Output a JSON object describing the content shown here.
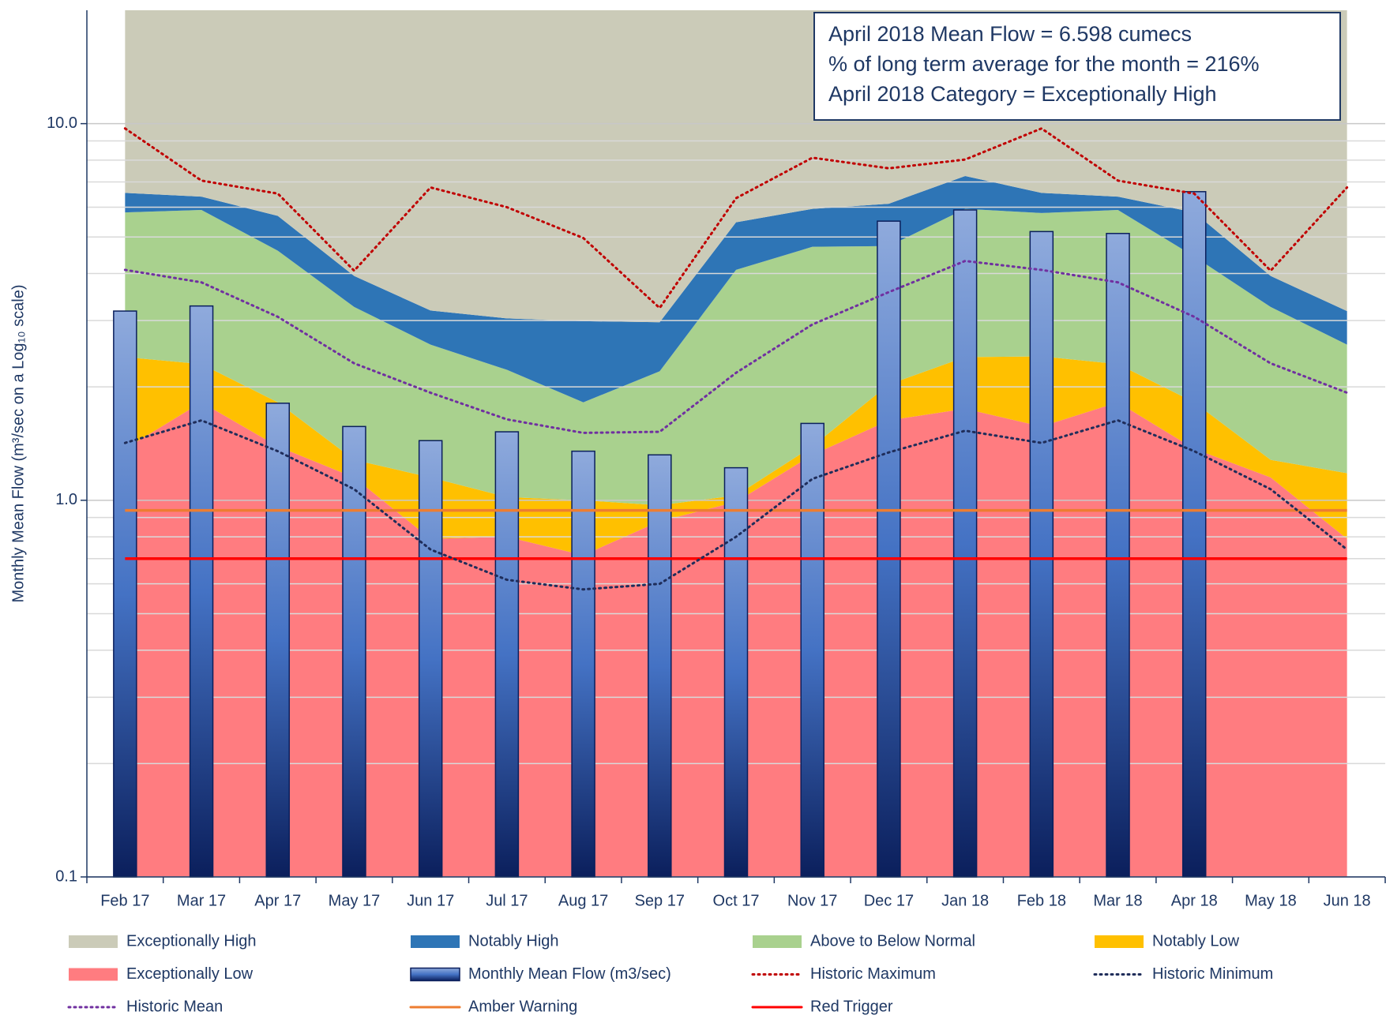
{
  "chart_data": {
    "type": "combo",
    "y_label": "Monthly Mean Flow (m³/sec on a Log₁₀ scale)",
    "annotations": [
      "April 2018 Mean Flow = 6.598 cumecs",
      "% of long term average for the month = 216%",
      "April 2018 Category = Exceptionally High"
    ],
    "categories": [
      "Feb 17",
      "Mar 17",
      "Apr 17",
      "May 17",
      "Jun 17",
      "Jul 17",
      "Aug 17",
      "Sep 17",
      "Oct 17",
      "Nov 17",
      "Dec 17",
      "Jan 18",
      "Feb 18",
      "Mar 18",
      "Apr 18",
      "May 18",
      "Jun 18"
    ],
    "log_scale": true,
    "grid": true,
    "ylim": [
      0.1,
      20
    ],
    "yticks": [
      0.1,
      {
        "value": 1,
        "label": "1.0"
      },
      {
        "value": 10,
        "label": "10.0"
      }
    ],
    "minor_yticks": [
      0.2,
      0.3,
      0.4,
      0.5,
      0.6,
      0.7,
      0.8,
      0.9,
      2,
      3,
      4,
      5,
      6,
      7,
      8,
      9
    ],
    "legend": "bottom",
    "series": [
      {
        "name": "Exceptionally High",
        "type": "area",
        "color": "#cbcbb8",
        "values": [
          13.45,
          13.6,
          14.31,
          16.06,
          16.81,
          16.96,
          17.01,
          17.03,
          14.53,
          14.06,
          13.87,
          12.74,
          13.45,
          13.6,
          14.19,
          16.06,
          16.82
        ]
      },
      {
        "name": "Notably High",
        "type": "area",
        "color": "#2e75b6",
        "values": [
          0.74,
          0.5,
          1.09,
          0.68,
          0.6,
          0.82,
          1.17,
          0.77,
          1.38,
          1.23,
          1.4,
          1.32,
          0.76,
          0.5,
          1.37,
          0.68,
          0.59
        ]
      },
      {
        "name": "Above to Below Normal",
        "type": "area",
        "color": "#a9d18e",
        "values": [
          3.41,
          3.6,
          2.78,
          1.98,
          1.44,
          1.2,
          0.82,
          1.23,
          3.06,
          3.32,
          2.7,
          3.54,
          3.38,
          3.6,
          2.62,
          1.98,
          1.41
        ]
      },
      {
        "name": "Notably Low",
        "type": "area",
        "color": "#ffc000",
        "values": [
          1.03,
          0.48,
          0.43,
          0.13,
          0.36,
          0.22,
          0.285,
          0.09,
          0.04,
          0.07,
          0.4,
          0.65,
          0.84,
          0.48,
          0.45,
          0.13,
          0.39
        ]
      },
      {
        "name": "Exceptionally Low",
        "type": "area",
        "color": "#ff7c80",
        "values": [
          1.37,
          1.82,
          1.39,
          1.15,
          0.79,
          0.8,
          0.715,
          0.88,
          0.99,
          1.32,
          1.63,
          1.75,
          1.57,
          1.82,
          1.37,
          1.15,
          0.79
        ]
      },
      {
        "name": "Monthly Mean Flow (m3/sec)",
        "type": "bar",
        "color": "#1f3a7a",
        "values": [
          3.18,
          3.28,
          1.81,
          1.57,
          1.44,
          1.52,
          1.35,
          1.32,
          1.22,
          1.6,
          5.51,
          5.9,
          5.17,
          5.11,
          6.598,
          null,
          null
        ]
      },
      {
        "name": "Historic Maximum",
        "type": "line",
        "style": "dotted",
        "color": "#c00000",
        "values": [
          9.71,
          7.06,
          6.52,
          4.07,
          6.77,
          6.0,
          4.97,
          3.24,
          6.34,
          8.12,
          7.61,
          8.03,
          9.71,
          7.06,
          6.52,
          4.07,
          6.77
        ]
      },
      {
        "name": "Historic Minimum",
        "type": "line",
        "style": "dotted",
        "color": "#1f2d5a",
        "values": [
          1.42,
          1.63,
          1.35,
          1.07,
          0.74,
          0.615,
          0.58,
          0.6,
          0.8,
          1.14,
          1.34,
          1.53,
          1.42,
          1.63,
          1.35,
          1.07,
          0.74
        ]
      },
      {
        "name": "Historic Mean",
        "type": "line",
        "style": "dotted",
        "color": "#7030a0",
        "values": [
          4.09,
          3.79,
          3.07,
          2.31,
          1.93,
          1.64,
          1.51,
          1.52,
          2.18,
          2.93,
          3.57,
          4.32,
          4.09,
          3.79,
          3.07,
          2.31,
          1.93
        ]
      },
      {
        "name": "Amber Warning",
        "type": "hline",
        "style": "solid",
        "color": "#ed7d31",
        "value": 0.94
      },
      {
        "name": "Red Trigger",
        "type": "hline",
        "style": "solid",
        "color": "#ff0000",
        "value": 0.7
      }
    ]
  }
}
